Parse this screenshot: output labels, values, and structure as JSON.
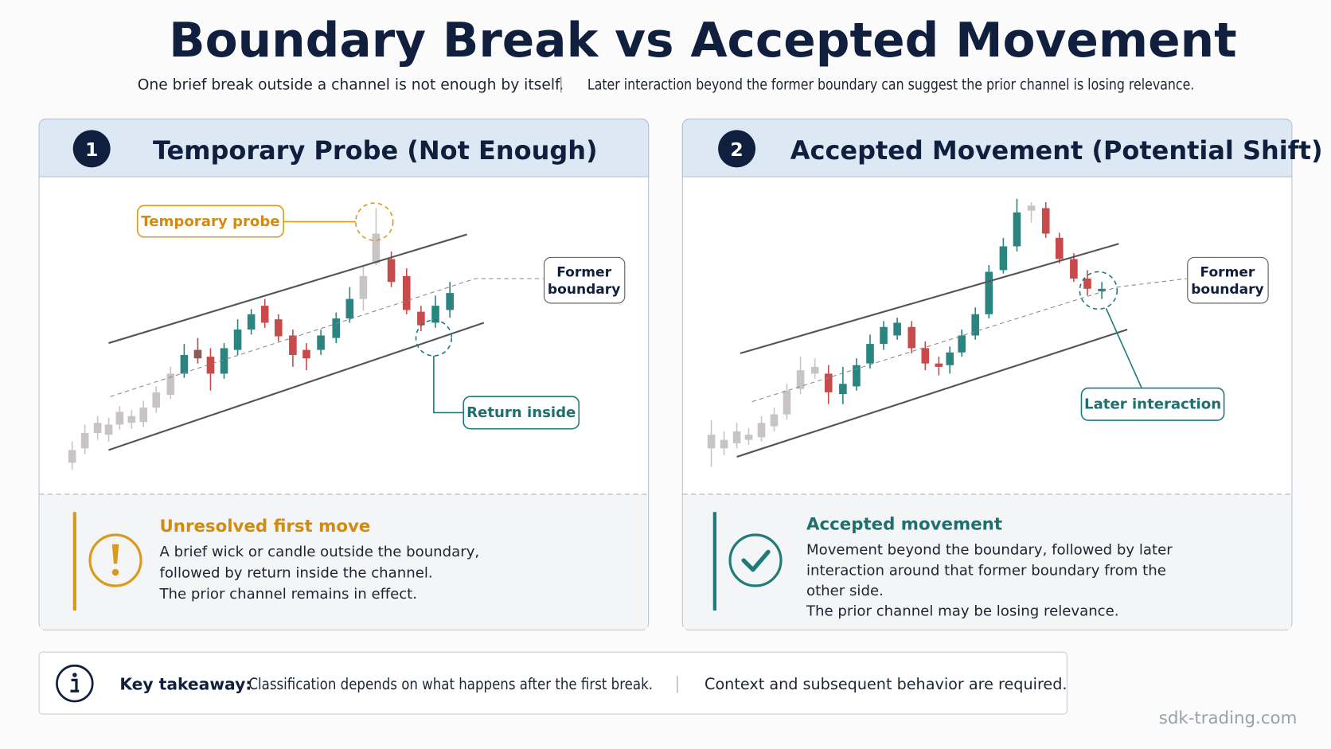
{
  "header": {
    "title": "Boundary Break vs Accepted Movement",
    "subtitle_left": "One brief break outside a channel is not enough by itself.",
    "subtitle_right": "Later interaction beyond the former boundary can suggest the prior channel is losing relevance."
  },
  "panels": [
    {
      "number": 1,
      "title": "Temporary Probe (Not Enough)",
      "labels": {
        "probe": "Temporary probe",
        "boundary": [
          "Former",
          "boundary"
        ],
        "return": "Return inside"
      },
      "note": {
        "heading": "Unresolved first move",
        "lines": [
          "A brief wick or candle outside the boundary,",
          "followed by return inside the channel.",
          "The prior channel remains in effect."
        ]
      }
    },
    {
      "number": 2,
      "title": "Accepted Movement (Potential Shift)",
      "labels": {
        "boundary": [
          "Former",
          "boundary"
        ],
        "interaction": "Later interaction"
      },
      "note": {
        "heading": "Accepted movement",
        "lines": [
          "Movement beyond the boundary, followed by later",
          "interaction around that former boundary from the",
          "other side.",
          "The prior channel may be losing relevance."
        ]
      }
    }
  ],
  "takeaway": {
    "label": "Key takeaway:",
    "parts": [
      "Classification depends on what happens after the first break.",
      "Context and subsequent behavior are required."
    ]
  },
  "footer": "sdk-trading.com"
}
